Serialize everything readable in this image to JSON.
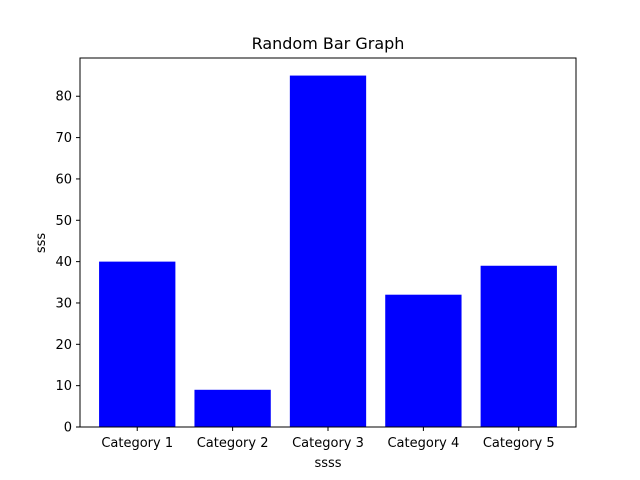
{
  "chart_data": {
    "type": "bar",
    "title": "Random Bar Graph",
    "xlabel": "ssss",
    "ylabel": "sss",
    "categories": [
      "Category 1",
      "Category 2",
      "Category 3",
      "Category 4",
      "Category 5"
    ],
    "values": [
      40,
      9,
      85,
      32,
      39
    ],
    "ylim": [
      0,
      89.25
    ],
    "yticks": [
      0,
      10,
      20,
      30,
      40,
      50,
      60,
      70,
      80
    ],
    "bar_color": "#0000ff",
    "grid": false,
    "legend": "none"
  }
}
